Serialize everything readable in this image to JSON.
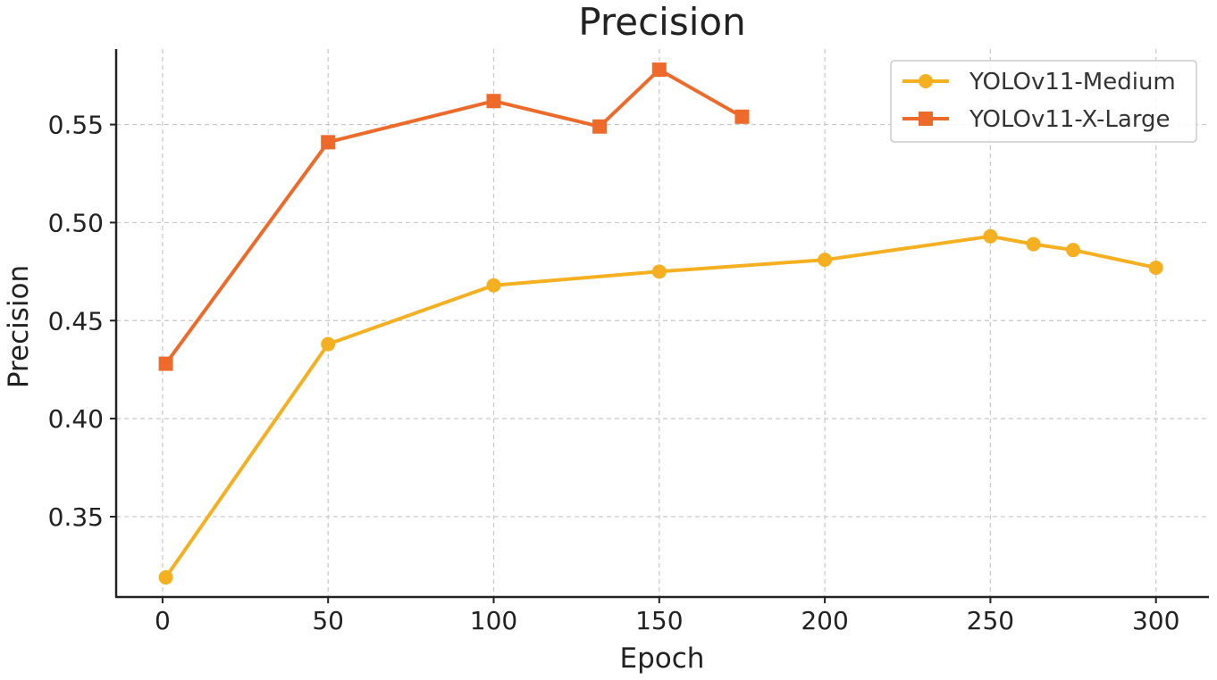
{
  "chart_data": {
    "type": "line",
    "title": "Precision",
    "xlabel": "Epoch",
    "ylabel": "Precision",
    "xlim": [
      -14,
      316
    ],
    "ylim": [
      0.309,
      0.5885
    ],
    "xticks": [
      0,
      50,
      100,
      150,
      200,
      250,
      300
    ],
    "yticks": [
      0.35,
      0.4,
      0.45,
      0.5,
      0.55
    ],
    "xtick_labels": [
      "0",
      "50",
      "100",
      "150",
      "200",
      "250",
      "300"
    ],
    "ytick_labels": [
      "0.35",
      "0.40",
      "0.45",
      "0.50",
      "0.55"
    ],
    "grid": true,
    "legend_position": "top-right",
    "series": [
      {
        "name": "YOLOv11-Medium",
        "color": "#F5B021",
        "marker": "circle",
        "x": [
          1,
          50,
          100,
          150,
          200,
          250,
          263,
          275,
          300
        ],
        "y": [
          0.319,
          0.438,
          0.468,
          0.475,
          0.481,
          0.493,
          0.489,
          0.486,
          0.477
        ]
      },
      {
        "name": "YOLOv11-X-Large",
        "color": "#EE6A2B",
        "marker": "square",
        "x": [
          1,
          50,
          100,
          132,
          150,
          175
        ],
        "y": [
          0.428,
          0.541,
          0.562,
          0.549,
          0.578,
          0.554
        ]
      }
    ]
  }
}
